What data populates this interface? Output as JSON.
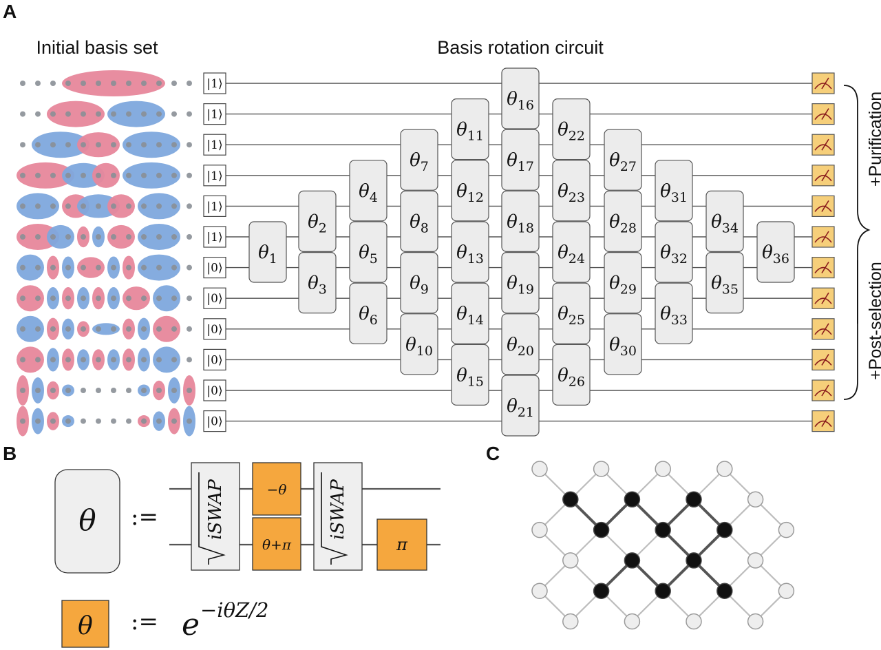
{
  "panels": {
    "a": "A",
    "b": "B",
    "c": "C"
  },
  "headings": {
    "basis": "Initial basis set",
    "circuit": "Basis rotation circuit"
  },
  "kets": [
    "|1⟩",
    "|1⟩",
    "|1⟩",
    "|1⟩",
    "|1⟩",
    "|1⟩",
    "|0⟩",
    "|0⟩",
    "|0⟩",
    "|0⟩",
    "|0⟩",
    "|0⟩"
  ],
  "gate_labels": [
    "θ1",
    "θ2",
    "θ3",
    "θ4",
    "θ5",
    "θ6",
    "θ7",
    "θ8",
    "θ9",
    "θ10",
    "θ11",
    "θ12",
    "θ13",
    "θ14",
    "θ15",
    "θ16",
    "θ17",
    "θ18",
    "θ19",
    "θ20",
    "θ21",
    "θ22",
    "θ23",
    "θ24",
    "θ25",
    "θ26",
    "θ27",
    "θ28",
    "θ29",
    "θ30",
    "θ31",
    "θ32",
    "θ33",
    "θ34",
    "θ35",
    "θ36"
  ],
  "brackets": {
    "purification": "+Purification",
    "postselection": "+Post-selection"
  },
  "panel_b": {
    "theta": "θ",
    "assign": ":=",
    "iswap": "iSWAP",
    "minus_theta": "−θ",
    "theta_plus_pi": "θ+π",
    "pi": "π",
    "exp_base": "e",
    "exp_power": "−iθZ/2"
  },
  "colors": {
    "pink": "#e7879b",
    "blue": "#7ea8dd",
    "gate": "#ececec",
    "measure": "#f6cf7a",
    "orange": "#f5a73e",
    "node_dark": "#111111",
    "node_light": "#eeeeee"
  }
}
